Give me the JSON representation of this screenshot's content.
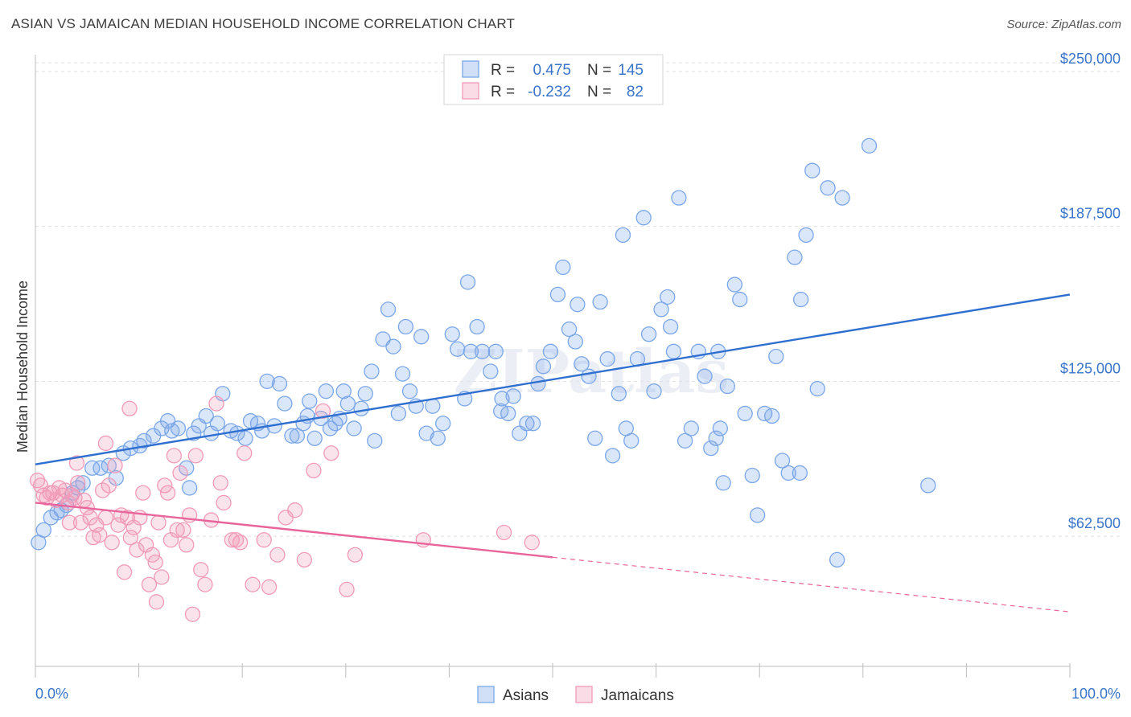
{
  "title": "ASIAN VS JAMAICAN MEDIAN HOUSEHOLD INCOME CORRELATION CHART",
  "source": "Source: ZipAtlas.com",
  "watermark": "ZIPatlas",
  "legend_top": {
    "rows": [
      {
        "r_label": "R =",
        "r_value": "0.475",
        "n_label": "N =",
        "n_value": "145",
        "color": "#7aa7e8"
      },
      {
        "r_label": "R =",
        "r_value": "-0.232",
        "n_label": "N =",
        "n_value": "82",
        "color": "#f19ab8"
      }
    ]
  },
  "legend_bottom": {
    "items": [
      {
        "label": "Asians",
        "color": "#7aa7e8"
      },
      {
        "label": "Jamaicans",
        "color": "#f19ab8"
      }
    ]
  },
  "chart_data": {
    "type": "scatter",
    "title": "ASIAN VS JAMAICAN MEDIAN HOUSEHOLD INCOME CORRELATION CHART",
    "xlabel": "",
    "ylabel": "Median Household Income",
    "xlim": [
      0,
      100
    ],
    "ylim": [
      10000,
      260000
    ],
    "x_tick_labels": [
      "0.0%",
      "100.0%"
    ],
    "y_ticks": [
      62500,
      125000,
      187500,
      250000
    ],
    "y_tick_labels": [
      "$62,500",
      "$125,000",
      "$187,500",
      "$250,000"
    ],
    "grid": true,
    "legend_position": "top-center",
    "series": [
      {
        "name": "Asians",
        "color": "#7aa7e8",
        "line_color": "#2f6fd0",
        "trend": {
          "x": [
            0,
            100
          ],
          "y": [
            91500,
            160000
          ],
          "dashed_from": null
        },
        "points": [
          [
            0.3,
            60000
          ],
          [
            0.8,
            65000
          ],
          [
            1.5,
            70000
          ],
          [
            2.1,
            72000
          ],
          [
            2.5,
            73000
          ],
          [
            3.0,
            75000
          ],
          [
            3.6,
            80000
          ],
          [
            4.1,
            82000
          ],
          [
            4.6,
            84000
          ],
          [
            5.5,
            90000
          ],
          [
            6.3,
            90000
          ],
          [
            7.1,
            91000
          ],
          [
            7.8,
            86000
          ],
          [
            8.5,
            96000
          ],
          [
            9.2,
            98000
          ],
          [
            10.1,
            99000
          ],
          [
            10.5,
            101000
          ],
          [
            11.4,
            103000
          ],
          [
            12.2,
            106000
          ],
          [
            12.8,
            109000
          ],
          [
            13.2,
            105000
          ],
          [
            13.8,
            106000
          ],
          [
            14.6,
            90000
          ],
          [
            14.9,
            82000
          ],
          [
            15.3,
            104000
          ],
          [
            15.8,
            107000
          ],
          [
            16.5,
            111000
          ],
          [
            17.0,
            104000
          ],
          [
            17.6,
            108000
          ],
          [
            18.1,
            120000
          ],
          [
            18.9,
            105000
          ],
          [
            19.5,
            104000
          ],
          [
            20.3,
            102000
          ],
          [
            20.8,
            109000
          ],
          [
            21.5,
            108000
          ],
          [
            21.9,
            105000
          ],
          [
            22.4,
            125000
          ],
          [
            23.1,
            107000
          ],
          [
            23.6,
            124000
          ],
          [
            24.1,
            116000
          ],
          [
            24.8,
            103000
          ],
          [
            25.3,
            103000
          ],
          [
            25.9,
            108000
          ],
          [
            26.5,
            117000
          ],
          [
            27.0,
            102000
          ],
          [
            27.6,
            110000
          ],
          [
            28.1,
            121000
          ],
          [
            28.5,
            106000
          ],
          [
            29.0,
            108000
          ],
          [
            29.4,
            110000
          ],
          [
            29.8,
            121000
          ],
          [
            30.2,
            116000
          ],
          [
            30.8,
            106000
          ],
          [
            31.5,
            114000
          ],
          [
            31.9,
            120000
          ],
          [
            32.5,
            129000
          ],
          [
            32.8,
            101000
          ],
          [
            33.6,
            142000
          ],
          [
            34.1,
            154000
          ],
          [
            34.6,
            139000
          ],
          [
            35.1,
            112000
          ],
          [
            35.8,
            147000
          ],
          [
            36.2,
            121000
          ],
          [
            36.8,
            115000
          ],
          [
            37.3,
            143000
          ],
          [
            37.8,
            104000
          ],
          [
            38.4,
            115000
          ],
          [
            38.9,
            102000
          ],
          [
            39.4,
            108000
          ],
          [
            40.3,
            144000
          ],
          [
            40.8,
            138000
          ],
          [
            41.5,
            118000
          ],
          [
            41.8,
            165000
          ],
          [
            42.1,
            137000
          ],
          [
            42.7,
            147000
          ],
          [
            43.2,
            137000
          ],
          [
            44.0,
            129000
          ],
          [
            44.5,
            137000
          ],
          [
            45.1,
            118000
          ],
          [
            45.7,
            112000
          ],
          [
            46.2,
            119000
          ],
          [
            46.8,
            104000
          ],
          [
            47.5,
            108000
          ],
          [
            48.1,
            108000
          ],
          [
            48.6,
            124000
          ],
          [
            49.1,
            131000
          ],
          [
            49.8,
            137000
          ],
          [
            50.5,
            160000
          ],
          [
            51.0,
            171000
          ],
          [
            51.6,
            146000
          ],
          [
            52.2,
            141000
          ],
          [
            52.8,
            132000
          ],
          [
            53.5,
            127000
          ],
          [
            54.1,
            102000
          ],
          [
            54.6,
            157000
          ],
          [
            55.3,
            134000
          ],
          [
            55.8,
            95000
          ],
          [
            56.4,
            120000
          ],
          [
            57.1,
            106000
          ],
          [
            57.6,
            101000
          ],
          [
            58.2,
            134000
          ],
          [
            58.8,
            191000
          ],
          [
            59.3,
            144000
          ],
          [
            59.8,
            121000
          ],
          [
            60.5,
            154000
          ],
          [
            61.1,
            159000
          ],
          [
            61.7,
            137000
          ],
          [
            62.2,
            199000
          ],
          [
            62.8,
            101000
          ],
          [
            63.4,
            106000
          ],
          [
            64.1,
            137000
          ],
          [
            64.7,
            127000
          ],
          [
            65.3,
            98000
          ],
          [
            65.8,
            102000
          ],
          [
            66.2,
            106000
          ],
          [
            66.9,
            123000
          ],
          [
            67.6,
            164000
          ],
          [
            68.1,
            158000
          ],
          [
            68.6,
            112000
          ],
          [
            69.3,
            87000
          ],
          [
            69.8,
            71000
          ],
          [
            70.5,
            112000
          ],
          [
            71.2,
            111000
          ],
          [
            71.6,
            135000
          ],
          [
            72.2,
            93000
          ],
          [
            72.8,
            88000
          ],
          [
            73.4,
            175000
          ],
          [
            73.9,
            88000
          ],
          [
            74.5,
            184000
          ],
          [
            75.1,
            210000
          ],
          [
            75.6,
            122000
          ],
          [
            76.6,
            203000
          ],
          [
            78.0,
            199000
          ],
          [
            80.6,
            220000
          ],
          [
            86.3,
            83000
          ],
          [
            66.5,
            84000
          ],
          [
            52.4,
            156000
          ],
          [
            56.8,
            184000
          ],
          [
            74.0,
            158000
          ],
          [
            77.5,
            53000
          ],
          [
            66.0,
            137000
          ],
          [
            45.0,
            113000
          ],
          [
            35.5,
            128000
          ],
          [
            26.3,
            111000
          ],
          [
            61.4,
            147000
          ]
        ]
      },
      {
        "name": "Jamaicans",
        "color": "#f19ab8",
        "line_color": "#e8649a",
        "trend": {
          "x": [
            0,
            100
          ],
          "y": [
            76000,
            32000
          ],
          "dashed_from": 50
        },
        "points": [
          [
            0.2,
            85000
          ],
          [
            0.5,
            83000
          ],
          [
            0.8,
            79000
          ],
          [
            1.1,
            78000
          ],
          [
            1.4,
            80000
          ],
          [
            1.7,
            80000
          ],
          [
            2.0,
            77000
          ],
          [
            2.3,
            82000
          ],
          [
            2.6,
            79000
          ],
          [
            2.9,
            81000
          ],
          [
            3.2,
            76000
          ],
          [
            3.5,
            79000
          ],
          [
            3.8,
            78000
          ],
          [
            4.1,
            84000
          ],
          [
            4.4,
            68000
          ],
          [
            4.7,
            77000
          ],
          [
            5.0,
            74000
          ],
          [
            5.3,
            70000
          ],
          [
            5.6,
            62000
          ],
          [
            5.9,
            67000
          ],
          [
            6.2,
            63000
          ],
          [
            6.5,
            81000
          ],
          [
            6.8,
            70000
          ],
          [
            7.1,
            83000
          ],
          [
            7.4,
            60000
          ],
          [
            7.7,
            91000
          ],
          [
            8.0,
            67000
          ],
          [
            8.3,
            71000
          ],
          [
            8.6,
            48000
          ],
          [
            8.9,
            70000
          ],
          [
            9.2,
            62000
          ],
          [
            9.5,
            66000
          ],
          [
            9.8,
            57000
          ],
          [
            10.1,
            70000
          ],
          [
            10.4,
            80000
          ],
          [
            10.7,
            59000
          ],
          [
            11.0,
            43000
          ],
          [
            11.3,
            55000
          ],
          [
            11.6,
            52000
          ],
          [
            11.9,
            68000
          ],
          [
            12.2,
            46000
          ],
          [
            12.5,
            83000
          ],
          [
            12.8,
            80000
          ],
          [
            13.1,
            61000
          ],
          [
            13.4,
            95000
          ],
          [
            13.7,
            65000
          ],
          [
            14.0,
            88000
          ],
          [
            14.3,
            65000
          ],
          [
            14.6,
            59000
          ],
          [
            14.9,
            71000
          ],
          [
            15.2,
            31000
          ],
          [
            15.5,
            95000
          ],
          [
            16.0,
            49000
          ],
          [
            16.4,
            43000
          ],
          [
            17.0,
            69000
          ],
          [
            17.5,
            116000
          ],
          [
            17.9,
            84000
          ],
          [
            18.2,
            76000
          ],
          [
            19.0,
            61000
          ],
          [
            19.4,
            61000
          ],
          [
            19.8,
            60000
          ],
          [
            20.2,
            96000
          ],
          [
            21.0,
            43000
          ],
          [
            22.1,
            61000
          ],
          [
            22.6,
            42000
          ],
          [
            23.4,
            55000
          ],
          [
            24.2,
            70000
          ],
          [
            25.1,
            73000
          ],
          [
            26.0,
            53000
          ],
          [
            26.9,
            89000
          ],
          [
            27.8,
            113000
          ],
          [
            28.6,
            96000
          ],
          [
            30.1,
            41000
          ],
          [
            30.9,
            55000
          ],
          [
            37.5,
            61000
          ],
          [
            45.3,
            64000
          ],
          [
            48.0,
            60000
          ],
          [
            9.1,
            114000
          ],
          [
            6.8,
            100000
          ],
          [
            4.0,
            92000
          ],
          [
            11.7,
            36000
          ],
          [
            3.3,
            68000
          ]
        ]
      }
    ]
  }
}
